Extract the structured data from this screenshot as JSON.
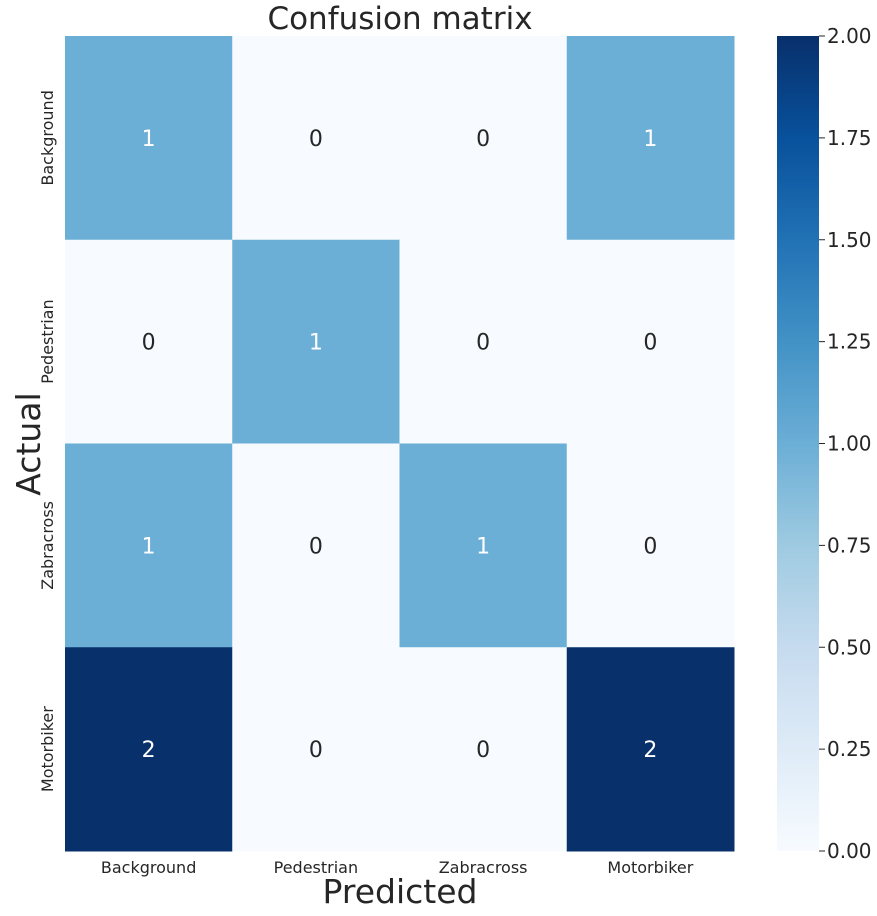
{
  "chart_data": {
    "type": "heatmap",
    "title": "Confusion matrix",
    "xlabel": "Predicted",
    "ylabel": "Actual",
    "x_categories": [
      "Background",
      "Pedestrian",
      "Zabracross",
      "Motorbiker"
    ],
    "y_categories": [
      "Background",
      "Pedestrian",
      "Zabracross",
      "Motorbiker"
    ],
    "values": [
      [
        1,
        0,
        0,
        1
      ],
      [
        0,
        1,
        0,
        0
      ],
      [
        1,
        0,
        1,
        0
      ],
      [
        2,
        0,
        0,
        2
      ]
    ],
    "colormap": "Blues",
    "vmin": 0,
    "vmax": 2,
    "colorbar_ticks": [
      "0.00",
      "0.25",
      "0.50",
      "0.75",
      "1.00",
      "1.25",
      "1.50",
      "1.75",
      "2.00"
    ]
  }
}
